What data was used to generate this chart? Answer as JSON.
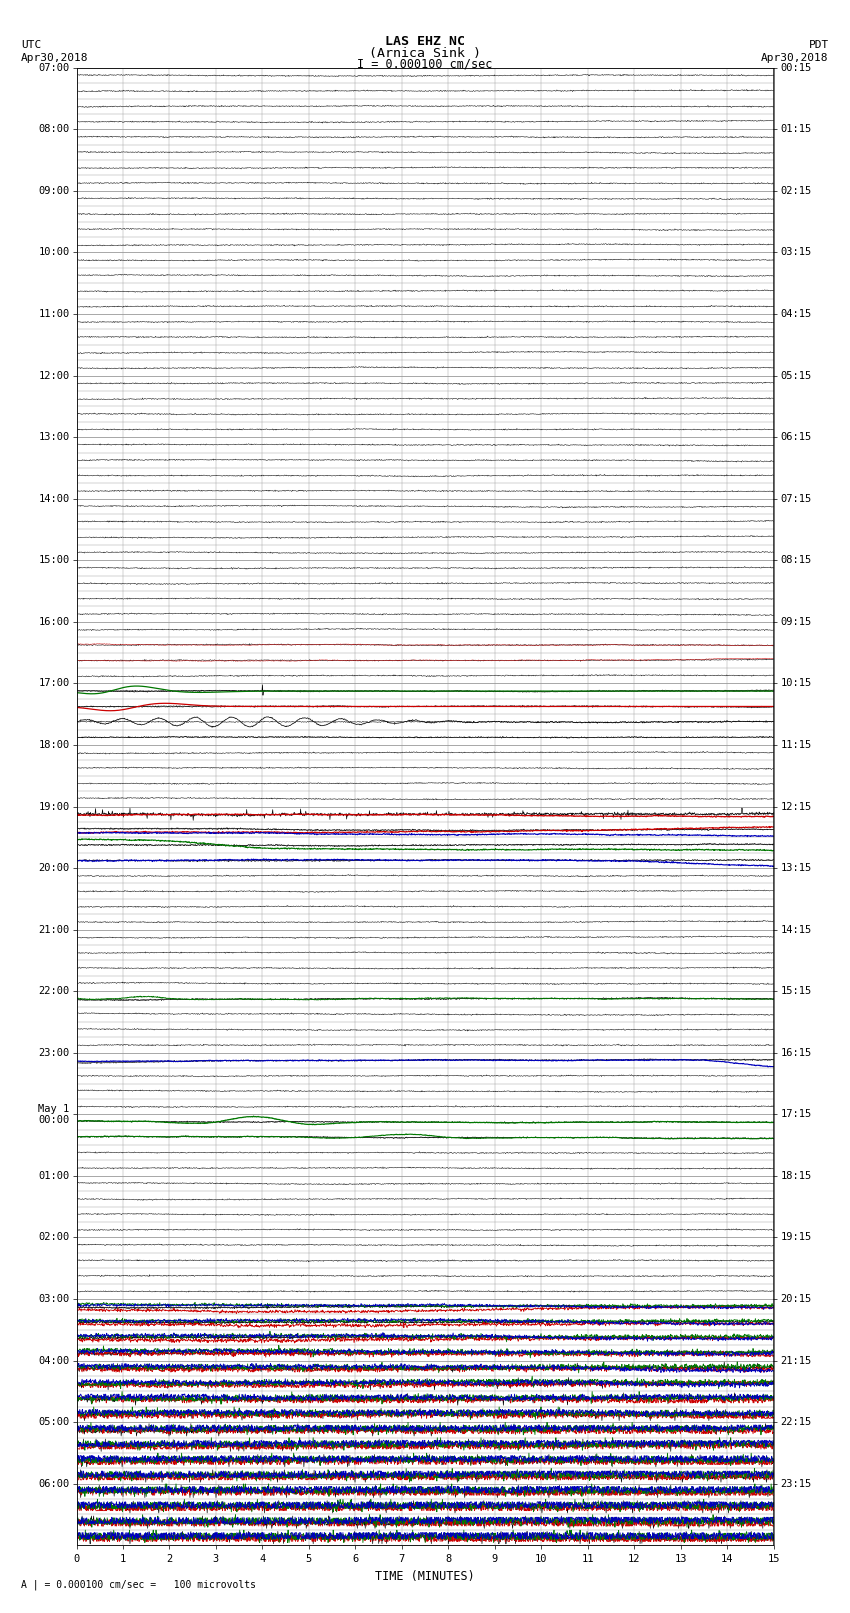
{
  "title_line1": "LAS EHZ NC",
  "title_line2": "(Arnica Sink )",
  "scale_label": "I = 0.000100 cm/sec",
  "bottom_label": "A | = 0.000100 cm/sec =   100 microvolts",
  "xlabel": "TIME (MINUTES)",
  "left_times": [
    "07:00",
    "",
    "",
    "",
    "08:00",
    "",
    "",
    "",
    "09:00",
    "",
    "",
    "",
    "10:00",
    "",
    "",
    "",
    "11:00",
    "",
    "",
    "",
    "12:00",
    "",
    "",
    "",
    "13:00",
    "",
    "",
    "",
    "14:00",
    "",
    "",
    "",
    "15:00",
    "",
    "",
    "",
    "16:00",
    "",
    "",
    "",
    "17:00",
    "",
    "",
    "",
    "18:00",
    "",
    "",
    "",
    "19:00",
    "",
    "",
    "",
    "20:00",
    "",
    "",
    "",
    "21:00",
    "",
    "",
    "",
    "22:00",
    "",
    "",
    "",
    "23:00",
    "",
    "",
    "",
    "May 1\n00:00",
    "",
    "",
    "",
    "01:00",
    "",
    "",
    "",
    "02:00",
    "",
    "",
    "",
    "03:00",
    "",
    "",
    "",
    "04:00",
    "",
    "",
    "",
    "05:00",
    "",
    "",
    "",
    "06:00",
    "",
    "",
    ""
  ],
  "right_times": [
    "00:15",
    "",
    "",
    "",
    "01:15",
    "",
    "",
    "",
    "02:15",
    "",
    "",
    "",
    "03:15",
    "",
    "",
    "",
    "04:15",
    "",
    "",
    "",
    "05:15",
    "",
    "",
    "",
    "06:15",
    "",
    "",
    "",
    "07:15",
    "",
    "",
    "",
    "08:15",
    "",
    "",
    "",
    "09:15",
    "",
    "",
    "",
    "10:15",
    "",
    "",
    "",
    "11:15",
    "",
    "",
    "",
    "12:15",
    "",
    "",
    "",
    "13:15",
    "",
    "",
    "",
    "14:15",
    "",
    "",
    "",
    "15:15",
    "",
    "",
    "",
    "16:15",
    "",
    "",
    "",
    "17:15",
    "",
    "",
    "",
    "18:15",
    "",
    "",
    "",
    "19:15",
    "",
    "",
    "",
    "20:15",
    "",
    "",
    "",
    "21:15",
    "",
    "",
    "",
    "22:15",
    "",
    "",
    "",
    "23:15",
    "",
    "",
    ""
  ],
  "n_rows": 96,
  "n_cols": 15,
  "bg_color": "#ffffff"
}
